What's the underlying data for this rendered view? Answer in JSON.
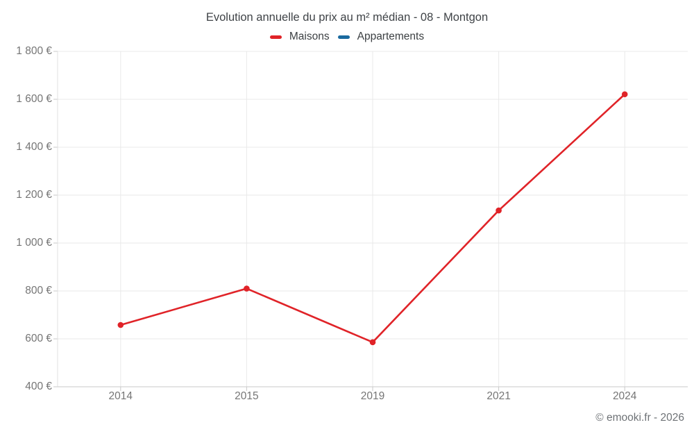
{
  "chart_data": {
    "type": "line",
    "title": "Evolution annuelle du prix au m² médian - 08 - Montgon",
    "categories": [
      "2014",
      "2015",
      "2019",
      "2021",
      "2024"
    ],
    "series": [
      {
        "id": "maisons",
        "name": "Maisons",
        "color": "#e02328",
        "values": [
          658,
          810,
          586,
          1136,
          1621
        ]
      },
      {
        "id": "appartements",
        "name": "Appartements",
        "color": "#1a6a9f",
        "values": []
      }
    ],
    "ylim": [
      400,
      1800
    ],
    "yticks": [
      400,
      600,
      800,
      1000,
      1200,
      1400,
      1600,
      1800
    ],
    "ytick_labels": [
      "400 €",
      "600 €",
      "800 €",
      "1 000 €",
      "1 200 €",
      "1 400 €",
      "1 600 €",
      "1 800 €"
    ],
    "xlabel": "",
    "ylabel": "",
    "grid": true,
    "legend_position": "top"
  },
  "footer": {
    "copyright": "© emooki.fr - 2026"
  },
  "colors": {
    "background": "#ffffff",
    "grid": "#e9e9e9",
    "axis": "#c9c9c9",
    "left_axis": "#e0e0e0",
    "tick_label": "#757575",
    "title_text": "#3f4347",
    "legend_text": "#3c4043",
    "footer_text": "#6e7276"
  }
}
